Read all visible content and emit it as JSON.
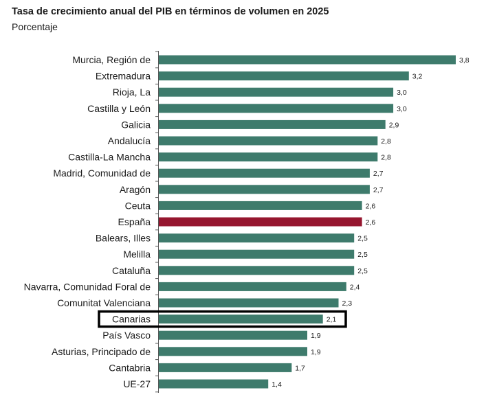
{
  "chart_data": {
    "type": "bar",
    "orientation": "horizontal",
    "title": "Tasa de crecimiento anual del PIB en términos de volumen en 2025",
    "subtitle": "Porcentaje",
    "xlabel": "",
    "ylabel": "",
    "xlim": [
      0,
      3.8
    ],
    "grid": false,
    "legend": "none",
    "categories": [
      "Murcia, Región de",
      "Extremadura",
      "Rioja, La",
      "Castilla y León",
      "Galicia",
      "Andalucía",
      "Castilla-La Mancha",
      "Madrid, Comunidad de",
      "Aragón",
      "Ceuta",
      "España",
      "Balears, Illes",
      "Melilla",
      "Cataluña",
      "Navarra, Comunidad Foral de",
      "Comunitat Valenciana",
      "Canarias",
      "País Vasco",
      "Asturias, Principado de",
      "Cantabria",
      "UE-27"
    ],
    "values": [
      3.8,
      3.2,
      3.0,
      3.0,
      2.9,
      2.8,
      2.8,
      2.7,
      2.7,
      2.6,
      2.6,
      2.5,
      2.5,
      2.5,
      2.4,
      2.3,
      2.1,
      1.9,
      1.9,
      1.7,
      1.4
    ],
    "value_labels": [
      "3,8",
      "3,2",
      "3,0",
      "3,0",
      "2,9",
      "2,8",
      "2,8",
      "2,7",
      "2,7",
      "2,6",
      "2,6",
      "2,5",
      "2,5",
      "2,5",
      "2,4",
      "2,3",
      "2,1",
      "1,9",
      "1,9",
      "1,7",
      "1,4"
    ],
    "bar_color": "#3e7b6c",
    "highlight_category": "España",
    "highlight_color": "#96162f",
    "outlined_category": "Canarias",
    "outline_color": "#000000"
  }
}
